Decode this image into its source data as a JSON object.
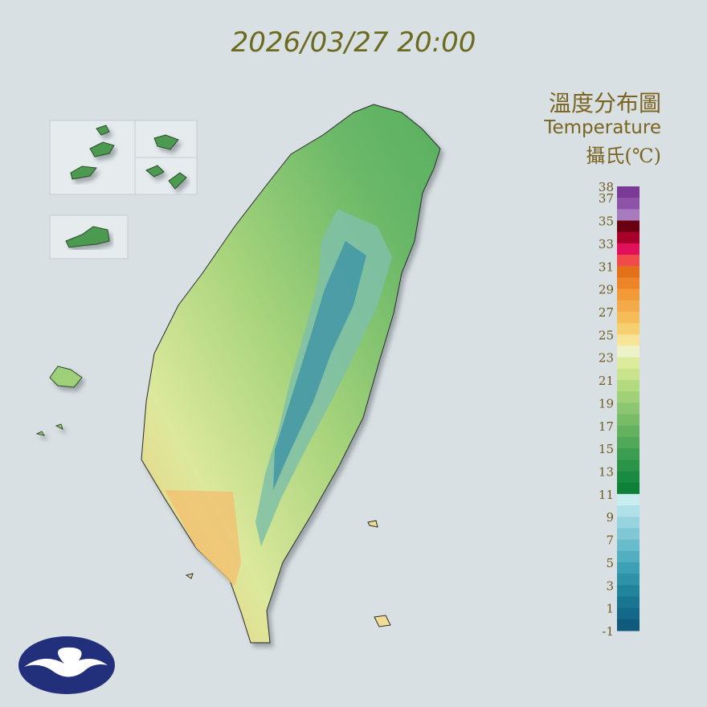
{
  "header": {
    "timestamp": "2026/03/27 20:00"
  },
  "legend": {
    "title": "溫度分布圖",
    "subtitle": "Temperature",
    "unit": "攝氏(℃)",
    "ticks": [
      38,
      37,
      35,
      33,
      31,
      29,
      27,
      25,
      23,
      21,
      19,
      17,
      15,
      13,
      11,
      9,
      7,
      5,
      3,
      1,
      -1
    ],
    "colors": [
      "#7b3a96",
      "#8e52a8",
      "#a87bbf",
      "#6a0012",
      "#a8002a",
      "#e0105a",
      "#f04a4a",
      "#e4701a",
      "#ec8428",
      "#f29a38",
      "#f4aa48",
      "#f6bc58",
      "#f6d070",
      "#f8e498",
      "#eef2c8",
      "#dcec9c",
      "#c9e48c",
      "#b4da80",
      "#a0d078",
      "#8cc670",
      "#78bc68",
      "#64b260",
      "#50a858",
      "#3c9e50",
      "#2a9448",
      "#1a8a40",
      "#0f8038",
      "#c8ecf0",
      "#b0e0e8",
      "#98d4e0",
      "#80c8d8",
      "#68bccc",
      "#52aec0",
      "#3ea0b4",
      "#2e92a8",
      "#22849c",
      "#1a7690",
      "#14688a",
      "#105a7c"
    ]
  }
}
